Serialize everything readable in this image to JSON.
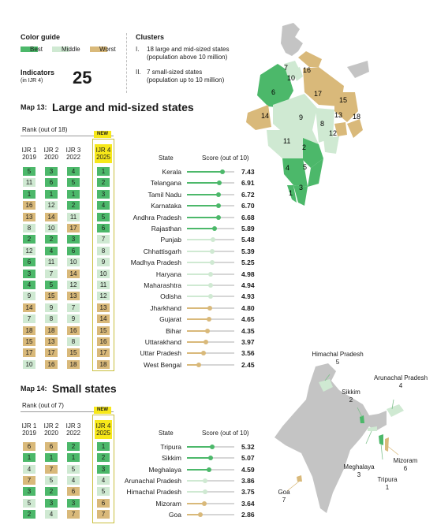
{
  "colors": {
    "best": "#4cb86a",
    "middle": "#cfe9d2",
    "worst": "#d9b97a",
    "line": "#d6d6d6",
    "new_badge": "#f7e81a",
    "map_other": "#c4c4c4"
  },
  "legend": {
    "title": "Color guide",
    "items": [
      {
        "label": "Best",
        "tier": "best"
      },
      {
        "label": "Middle",
        "tier": "middle"
      },
      {
        "label": "Worst",
        "tier": "worst"
      }
    ],
    "indicators_label": "Indicators",
    "indicators_sub": "(in IJR 4)",
    "indicators_value": "25"
  },
  "clusters": {
    "title": "Clusters",
    "items": [
      {
        "num": "I.",
        "line1": "18 large and mid-sized states",
        "line2": "(population above 10 million)"
      },
      {
        "num": "II.",
        "line1": "7 small-sized states",
        "line2": "(population up to 10 million)"
      }
    ]
  },
  "map13": {
    "label": "Map 13:",
    "title": "Large and mid-sized states",
    "rank_label": "Rank (out of 18)",
    "new_label": "NEW",
    "columns": [
      {
        "line1": "IJR 1",
        "line2": "2019"
      },
      {
        "line1": "IJR 2",
        "line2": "2020"
      },
      {
        "line1": "IJR 3",
        "line2": "2022"
      },
      {
        "line1": "IJR 4",
        "line2": "2025"
      }
    ],
    "state_header": "State",
    "score_header": "Score (out of 10)",
    "map_labels": [
      "1",
      "2",
      "3",
      "4",
      "5",
      "6",
      "7",
      "8",
      "9",
      "10",
      "11",
      "12",
      "13",
      "14",
      "15",
      "16",
      "17",
      "18"
    ]
  },
  "map14": {
    "label": "Map 14:",
    "title": "Small states",
    "rank_label": "Rank (out of 7)",
    "new_label": "NEW",
    "columns": [
      {
        "line1": "IJR 1",
        "line2": "2019"
      },
      {
        "line1": "IJR 2",
        "line2": "2020"
      },
      {
        "line1": "IJR 3",
        "line2": "2022"
      },
      {
        "line1": "IJR 4",
        "line2": "2025"
      }
    ],
    "state_header": "State",
    "score_header": "Score (out of 10)",
    "map_labels": [
      {
        "name": "Himachal Pradesh",
        "rank": "5"
      },
      {
        "name": "Arunachal Pradesh",
        "rank": "4"
      },
      {
        "name": "Sikkim",
        "rank": "2"
      },
      {
        "name": "Mizoram",
        "rank": "6"
      },
      {
        "name": "Meghalaya",
        "rank": "3"
      },
      {
        "name": "Tripura",
        "rank": "1"
      },
      {
        "name": "Goa",
        "rank": "7"
      }
    ]
  },
  "chart_data": [
    {
      "type": "table",
      "title": "Large and mid-sized states",
      "score_max": 10,
      "rows": [
        {
          "state": "Kerala",
          "score": 7.43,
          "ranks": [
            5,
            3,
            4,
            1
          ],
          "tiers": [
            "best",
            "best",
            "best",
            "best"
          ]
        },
        {
          "state": "Telangana",
          "score": 6.91,
          "ranks": [
            11,
            6,
            5,
            2
          ],
          "tiers": [
            "middle",
            "best",
            "best",
            "best"
          ]
        },
        {
          "state": "Tamil Nadu",
          "score": 6.72,
          "ranks": [
            1,
            1,
            1,
            3
          ],
          "tiers": [
            "best",
            "best",
            "best",
            "best"
          ]
        },
        {
          "state": "Karnataka",
          "score": 6.7,
          "ranks": [
            16,
            12,
            2,
            4
          ],
          "tiers": [
            "worst",
            "middle",
            "best",
            "best"
          ]
        },
        {
          "state": "Andhra Pradesh",
          "score": 6.68,
          "ranks": [
            13,
            14,
            11,
            5
          ],
          "tiers": [
            "worst",
            "worst",
            "middle",
            "best"
          ]
        },
        {
          "state": "Rajasthan",
          "score": 5.89,
          "ranks": [
            8,
            10,
            17,
            6
          ],
          "tiers": [
            "middle",
            "middle",
            "worst",
            "best"
          ]
        },
        {
          "state": "Punjab",
          "score": 5.48,
          "ranks": [
            2,
            2,
            3,
            7
          ],
          "tiers": [
            "best",
            "best",
            "best",
            "middle"
          ]
        },
        {
          "state": "Chhattisgarh",
          "score": 5.39,
          "ranks": [
            12,
            4,
            6,
            8
          ],
          "tiers": [
            "middle",
            "best",
            "best",
            "middle"
          ]
        },
        {
          "state": "Madhya Pradesh",
          "score": 5.25,
          "ranks": [
            6,
            11,
            10,
            9
          ],
          "tiers": [
            "best",
            "middle",
            "middle",
            "middle"
          ]
        },
        {
          "state": "Haryana",
          "score": 4.98,
          "ranks": [
            3,
            7,
            14,
            10
          ],
          "tiers": [
            "best",
            "middle",
            "worst",
            "middle"
          ]
        },
        {
          "state": "Maharashtra",
          "score": 4.94,
          "ranks": [
            4,
            5,
            12,
            11
          ],
          "tiers": [
            "best",
            "best",
            "middle",
            "middle"
          ]
        },
        {
          "state": "Odisha",
          "score": 4.93,
          "ranks": [
            9,
            15,
            13,
            12
          ],
          "tiers": [
            "middle",
            "worst",
            "worst",
            "middle"
          ]
        },
        {
          "state": "Jharkhand",
          "score": 4.8,
          "ranks": [
            14,
            9,
            7,
            13
          ],
          "tiers": [
            "worst",
            "middle",
            "middle",
            "worst"
          ]
        },
        {
          "state": "Gujarat",
          "score": 4.65,
          "ranks": [
            7,
            8,
            9,
            14
          ],
          "tiers": [
            "middle",
            "middle",
            "middle",
            "worst"
          ]
        },
        {
          "state": "Bihar",
          "score": 4.35,
          "ranks": [
            18,
            18,
            16,
            15
          ],
          "tiers": [
            "worst",
            "worst",
            "worst",
            "worst"
          ]
        },
        {
          "state": "Uttarakhand",
          "score": 3.97,
          "ranks": [
            15,
            13,
            8,
            16
          ],
          "tiers": [
            "worst",
            "worst",
            "middle",
            "worst"
          ]
        },
        {
          "state": "Uttar Pradesh",
          "score": 3.56,
          "ranks": [
            17,
            17,
            15,
            17
          ],
          "tiers": [
            "worst",
            "worst",
            "worst",
            "worst"
          ]
        },
        {
          "state": "West Bengal",
          "score": 2.45,
          "ranks": [
            10,
            16,
            18,
            18
          ],
          "tiers": [
            "middle",
            "worst",
            "worst",
            "worst"
          ]
        }
      ]
    },
    {
      "type": "table",
      "title": "Small states",
      "score_max": 10,
      "rows": [
        {
          "state": "Tripura",
          "score": 5.32,
          "ranks": [
            6,
            6,
            2,
            1
          ],
          "tiers": [
            "worst",
            "worst",
            "best",
            "best"
          ]
        },
        {
          "state": "Sikkim",
          "score": 5.07,
          "ranks": [
            1,
            1,
            1,
            2
          ],
          "tiers": [
            "best",
            "best",
            "best",
            "best"
          ]
        },
        {
          "state": "Meghalaya",
          "score": 4.59,
          "ranks": [
            4,
            7,
            5,
            3
          ],
          "tiers": [
            "middle",
            "worst",
            "middle",
            "best"
          ]
        },
        {
          "state": "Arunachal Pradesh",
          "score": 3.86,
          "ranks": [
            7,
            5,
            4,
            4
          ],
          "tiers": [
            "worst",
            "middle",
            "middle",
            "middle"
          ]
        },
        {
          "state": "Himachal Pradesh",
          "score": 3.75,
          "ranks": [
            3,
            2,
            6,
            5
          ],
          "tiers": [
            "best",
            "best",
            "worst",
            "middle"
          ]
        },
        {
          "state": "Mizoram",
          "score": 3.64,
          "ranks": [
            5,
            3,
            3,
            6
          ],
          "tiers": [
            "middle",
            "best",
            "best",
            "worst"
          ]
        },
        {
          "state": "Goa",
          "score": 2.86,
          "ranks": [
            2,
            4,
            7,
            7
          ],
          "tiers": [
            "best",
            "middle",
            "worst",
            "worst"
          ]
        }
      ]
    }
  ]
}
